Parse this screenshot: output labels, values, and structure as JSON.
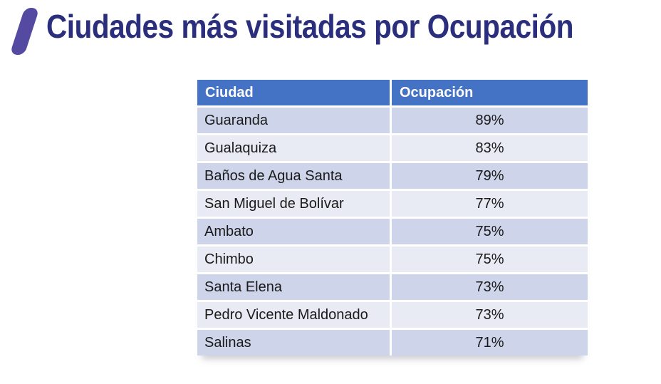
{
  "title": {
    "text": "Ciudades más visitadas por Ocupación",
    "color": "#2A2E7D",
    "slash_color": "#544AA1"
  },
  "table": {
    "headers": [
      "Ciudad",
      "Ocupación"
    ],
    "header_bg": "#4472C4",
    "header_text_color": "#FFFFFF",
    "row_band_dark": "#CED4EA",
    "row_band_light": "#E9EBF4",
    "rows": [
      {
        "city": "Guaranda",
        "occupancy": "89%"
      },
      {
        "city": "Gualaquiza",
        "occupancy": "83%"
      },
      {
        "city": "Baños de Agua Santa",
        "occupancy": "79%"
      },
      {
        "city": "San Miguel de Bolívar",
        "occupancy": "77%"
      },
      {
        "city": "Ambato",
        "occupancy": "75%"
      },
      {
        "city": "Chimbo",
        "occupancy": "75%"
      },
      {
        "city": "Santa Elena",
        "occupancy": "73%"
      },
      {
        "city": "Pedro Vicente Maldonado",
        "occupancy": "73%"
      },
      {
        "city": "Salinas",
        "occupancy": "71%"
      }
    ]
  },
  "chart_data": {
    "type": "table",
    "title": "Ciudades más visitadas por Ocupación",
    "columns": [
      "Ciudad",
      "Ocupación"
    ],
    "categories": [
      "Guaranda",
      "Gualaquiza",
      "Baños de Agua Santa",
      "San Miguel de Bolívar",
      "Ambato",
      "Chimbo",
      "Santa Elena",
      "Pedro Vicente Maldonado",
      "Salinas"
    ],
    "values": [
      89,
      83,
      79,
      77,
      75,
      75,
      73,
      73,
      71
    ],
    "value_unit": "%"
  }
}
